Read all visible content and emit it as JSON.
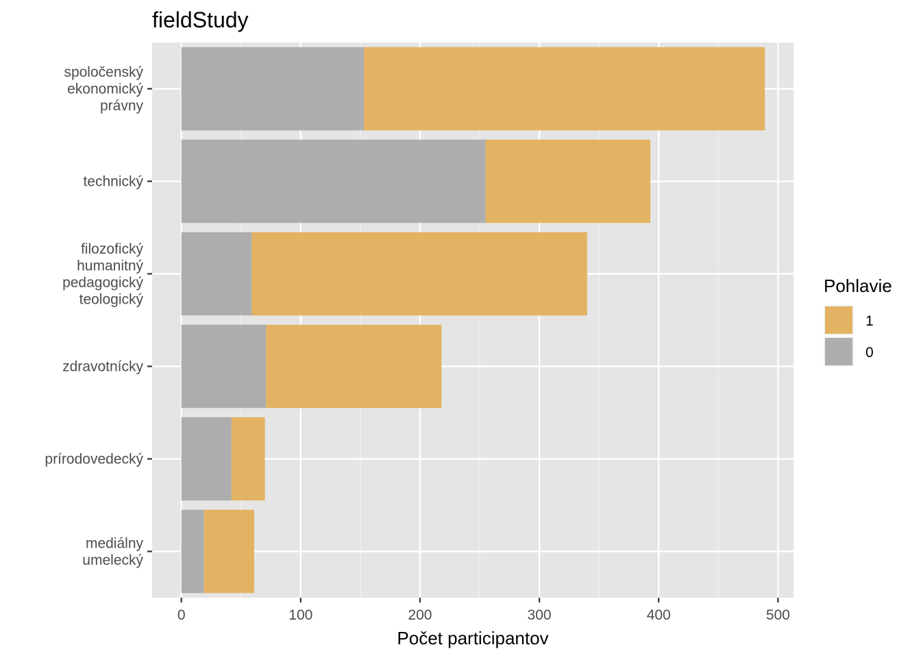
{
  "chart_data": {
    "type": "bar",
    "orientation": "horizontal",
    "stacked": true,
    "title": "fieldStudy",
    "xlabel": "Počet participantov",
    "ylabel": "",
    "xlim": [
      -24.5,
      513
    ],
    "xticks": [
      0,
      100,
      200,
      300,
      400,
      500
    ],
    "xtick_labels": [
      "0",
      "100",
      "200",
      "300",
      "400",
      "500"
    ],
    "grid": true,
    "categories": [
      [
        "spoločenský",
        "ekonomický",
        "právny"
      ],
      [
        "technický"
      ],
      [
        "filozofický",
        "humanitný",
        "pedagogický",
        "teologický"
      ],
      [
        "zdravotnícky"
      ],
      [
        "prírodovedecký"
      ],
      [
        "mediálny",
        "umelecký"
      ]
    ],
    "series": [
      {
        "name": "0",
        "color": "#adadad",
        "values": [
          153,
          255,
          59,
          71,
          42,
          19
        ]
      },
      {
        "name": "1",
        "color": "#e3b262",
        "values": [
          336,
          138,
          281,
          147,
          28,
          42
        ]
      }
    ],
    "legend": {
      "title": "Pohlavie",
      "position": "right",
      "order": [
        "1",
        "0"
      ]
    }
  }
}
